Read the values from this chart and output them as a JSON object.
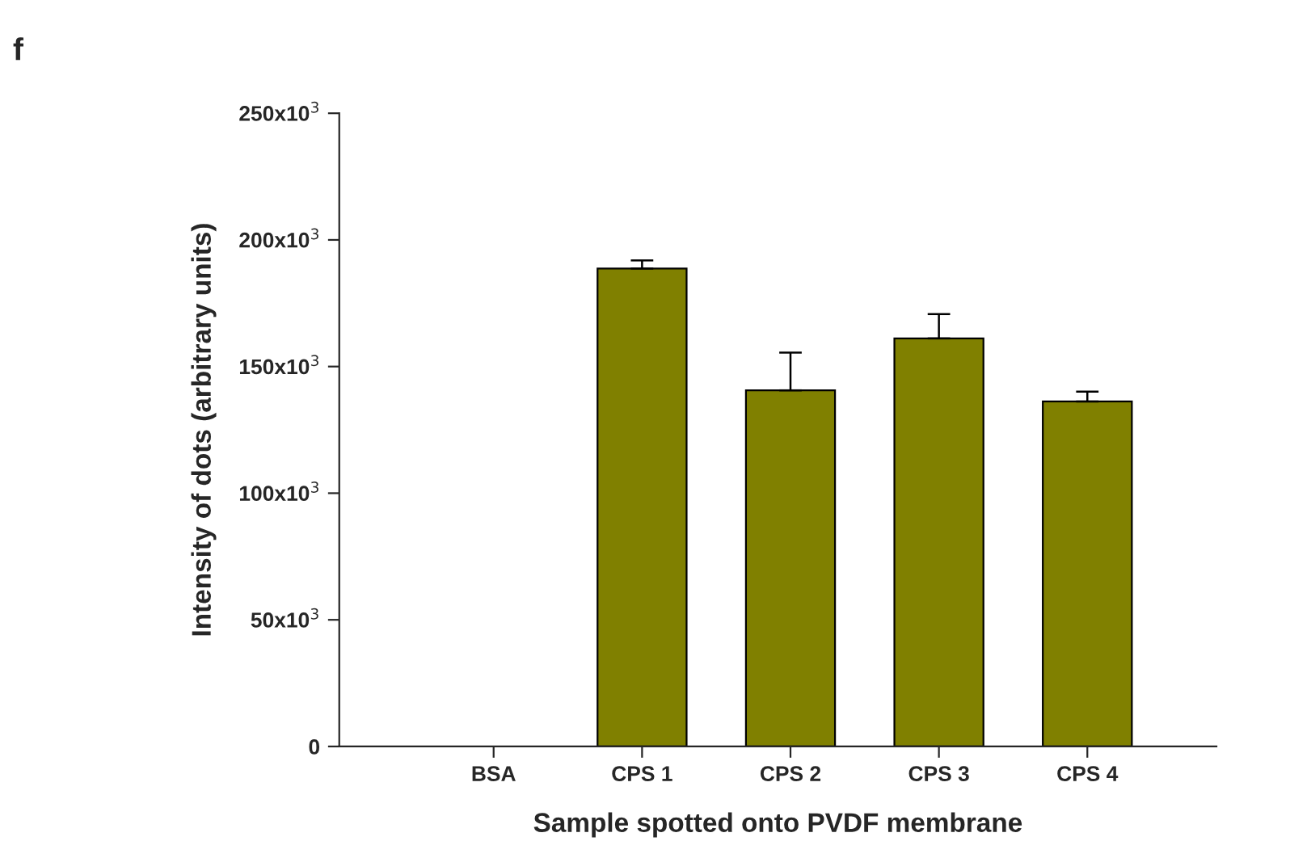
{
  "chart_data": {
    "type": "bar",
    "annotations": [
      "f"
    ],
    "xlabel": "Sample spotted onto PVDF membrane",
    "ylabel": "Intensity of dots (arbitrary units)",
    "categories": [
      "BSA",
      "CPS 1",
      "CPS 2",
      "CPS 3",
      "CPS 4"
    ],
    "values": [
      0,
      188700,
      140600,
      161100,
      136200
    ],
    "errors": [
      null,
      [
        188700,
        191900
      ],
      [
        140600,
        155500
      ],
      [
        161100,
        170700
      ],
      [
        136200,
        140100
      ]
    ],
    "color": "#808000",
    "ylim": [
      0,
      250000
    ],
    "yticks": [
      {
        "value": 0,
        "label": "0"
      },
      {
        "value": 50000,
        "label": "50x10$^{3}$"
      },
      {
        "value": 100000,
        "label": "100x10$^{3}$"
      },
      {
        "value": 150000,
        "label": "150x10$^{3}$"
      },
      {
        "value": 200000,
        "label": "200x10$^{3}$"
      },
      {
        "value": 250000,
        "label": "250x10$^{3}$"
      }
    ],
    "grid": false
  }
}
